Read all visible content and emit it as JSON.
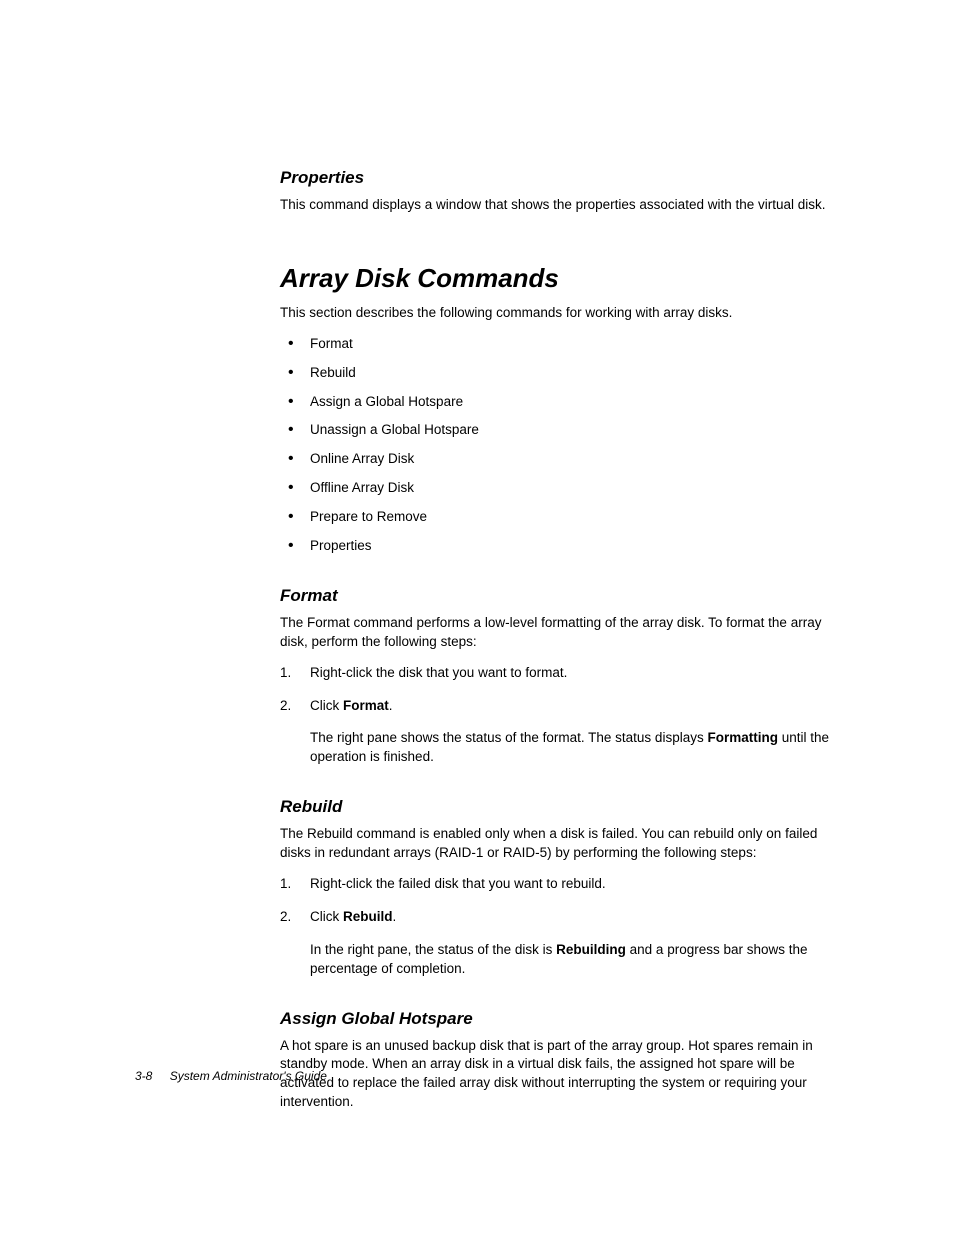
{
  "properties_section": {
    "heading": "Properties",
    "body": "This command displays a window that shows the properties associated with the virtual disk."
  },
  "main_section": {
    "heading": "Array Disk Commands",
    "intro": "This section describes the following commands for working with array disks.",
    "bullets": [
      "Format",
      "Rebuild",
      "Assign a Global Hotspare",
      "Unassign a Global Hotspare",
      "Online Array Disk",
      "Offline Array Disk",
      "Prepare to Remove",
      "Properties"
    ]
  },
  "format_section": {
    "heading": "Format",
    "intro": "The Format command performs a low-level formatting of the array disk. To format the array disk, perform the following steps:",
    "step1_num": "1.",
    "step1_text": "Right-click the disk that you want to format.",
    "step2_num": "2.",
    "step2_prefix": "Click ",
    "step2_bold": "Format",
    "step2_suffix": ".",
    "result_prefix": "The right pane shows the status of the format. The status displays ",
    "result_bold": "Formatting",
    "result_suffix": " until the operation is finished."
  },
  "rebuild_section": {
    "heading": "Rebuild",
    "intro": "The Rebuild command is enabled only when a disk is failed. You can rebuild only on failed disks in redundant arrays (RAID-1 or RAID-5) by performing the following steps:",
    "step1_num": "1.",
    "step1_text": "Right-click the failed disk that you want to rebuild.",
    "step2_num": "2.",
    "step2_prefix": "Click ",
    "step2_bold": "Rebuild",
    "step2_suffix": ".",
    "result_prefix": "In the right pane, the status of the disk is ",
    "result_bold": "Rebuilding",
    "result_suffix": " and a progress bar shows the percentage of completion."
  },
  "hotspare_section": {
    "heading": "Assign Global Hotspare",
    "body": "A hot spare is an unused backup disk that is part of the array group. Hot spares remain in standby mode. When an array disk in a virtual disk fails, the assigned hot spare will be activated to replace the failed array disk without interrupting the system or requiring your intervention."
  },
  "footer": {
    "page": "3-8",
    "title": "System Administrator's Guide"
  }
}
